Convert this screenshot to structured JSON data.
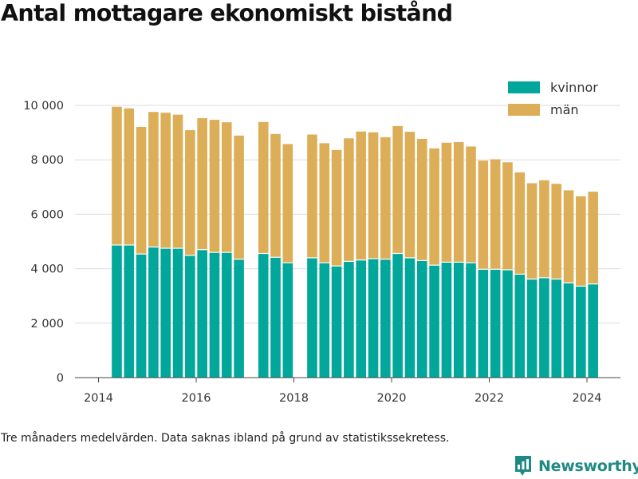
{
  "chart_data": {
    "type": "bar",
    "stacked": true,
    "title": "Antal mottagare ekonomiskt bistånd",
    "footnote": "Tre månaders medelvärden. Data saknas ibland på grund av statistikssekretess.",
    "xlabel": "",
    "ylabel": "",
    "x_ticks": [
      "2014",
      "2016",
      "2018",
      "2020",
      "2022",
      "2024"
    ],
    "y_ticks": [
      "0",
      "2 000",
      "4 000",
      "6 000",
      "8 000",
      "10 000"
    ],
    "ylim": [
      0,
      10000
    ],
    "grid": true,
    "legend_position": "top-right",
    "x": [
      "2014-Q2",
      "2014-Q3",
      "2014-Q4",
      "2015-Q1",
      "2015-Q2",
      "2015-Q3",
      "2015-Q4",
      "2016-Q1",
      "2016-Q2",
      "2016-Q3",
      "2016-Q4",
      "2017-Q2",
      "2017-Q3",
      "2017-Q4",
      "2018-Q2",
      "2018-Q3",
      "2018-Q4",
      "2019-Q1",
      "2019-Q2",
      "2019-Q3",
      "2019-Q4",
      "2020-Q1",
      "2020-Q2",
      "2020-Q3",
      "2020-Q4",
      "2021-Q1",
      "2021-Q2",
      "2021-Q3",
      "2021-Q4",
      "2022-Q1",
      "2022-Q2",
      "2022-Q3",
      "2022-Q4",
      "2023-Q1",
      "2023-Q2",
      "2023-Q3",
      "2023-Q4",
      "2024-Q1"
    ],
    "series": [
      {
        "name": "kvinnor",
        "color": "#00a79a",
        "values": [
          4870,
          4870,
          4540,
          4800,
          4750,
          4750,
          4490,
          4700,
          4600,
          4600,
          4350,
          4560,
          4420,
          4220,
          4400,
          4220,
          4100,
          4270,
          4320,
          4370,
          4350,
          4560,
          4400,
          4300,
          4130,
          4240,
          4240,
          4220,
          3980,
          3980,
          3960,
          3800,
          3620,
          3670,
          3620,
          3480,
          3360,
          3440
        ]
      },
      {
        "name": "män",
        "color": "#ddae58",
        "values": [
          5080,
          5020,
          4670,
          4960,
          4980,
          4910,
          4600,
          4830,
          4870,
          4780,
          4540,
          4830,
          4530,
          4360,
          4530,
          4390,
          4260,
          4520,
          4720,
          4640,
          4480,
          4680,
          4630,
          4470,
          4290,
          4390,
          4410,
          4270,
          3990,
          4040,
          3950,
          3740,
          3520,
          3580,
          3500,
          3400,
          3300,
          3390
        ]
      }
    ],
    "data_gaps": "2017-Q1, 2018-Q1"
  },
  "branding": {
    "name": "Newsworthy",
    "text_color": "#1f8a84",
    "icon": "newsworthy-logo-icon"
  }
}
